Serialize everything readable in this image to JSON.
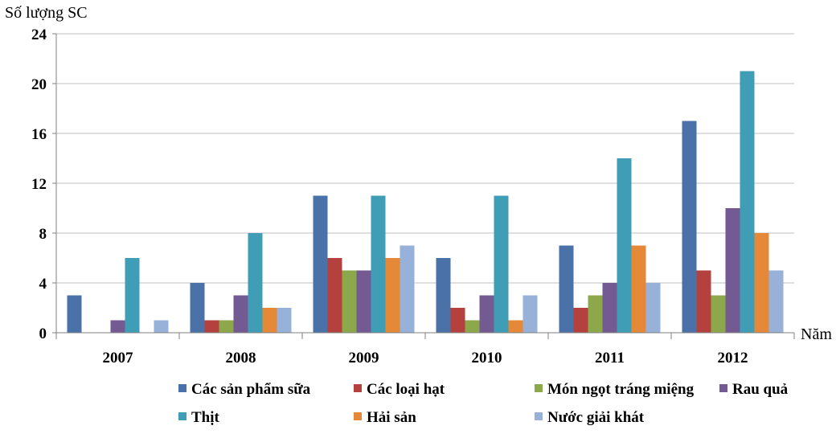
{
  "chart_data": {
    "type": "bar",
    "ylabel": "Số lượng SC",
    "xlabel": "Năm",
    "ylim": [
      0,
      24
    ],
    "yticks": [
      "0",
      "4",
      "8",
      "12",
      "16",
      "20",
      "24"
    ],
    "grid": true,
    "legend_position": "bottom",
    "categories": [
      "2007",
      "2008",
      "2009",
      "2010",
      "2011",
      "2012"
    ],
    "series": [
      {
        "name": "Các sản phẩm sữa",
        "color": "#4A72A8",
        "values": [
          3,
          4,
          11,
          6,
          7,
          17
        ]
      },
      {
        "name": "Các loại hạt",
        "color": "#B5413F",
        "values": [
          0,
          1,
          6,
          2,
          2,
          5
        ]
      },
      {
        "name": "Món ngọt tráng miệng",
        "color": "#8CA84B",
        "values": [
          0,
          1,
          5,
          1,
          3,
          3
        ]
      },
      {
        "name": "Rau quả",
        "color": "#735A93",
        "values": [
          1,
          3,
          5,
          3,
          4,
          10
        ]
      },
      {
        "name": "Thịt",
        "color": "#3F9EB5",
        "values": [
          6,
          8,
          11,
          11,
          14,
          21
        ]
      },
      {
        "name": "Hải sản",
        "color": "#E58837",
        "values": [
          0,
          2,
          6,
          1,
          7,
          8
        ]
      },
      {
        "name": "Nước giải khát",
        "color": "#97B1D8",
        "values": [
          1,
          2,
          7,
          3,
          4,
          5
        ]
      }
    ]
  }
}
